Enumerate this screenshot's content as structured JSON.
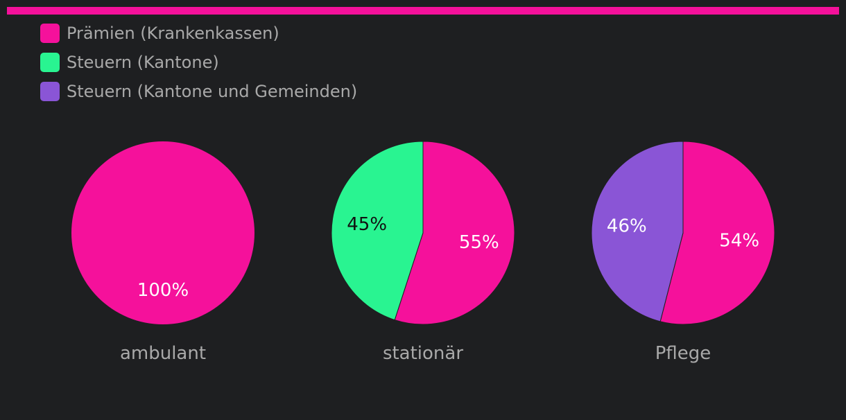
{
  "colors": {
    "bar": "#f5119b",
    "background": "#1e1f21",
    "text": "#a9a9a9"
  },
  "chart_data": {
    "type": "pie",
    "legend": [
      {
        "label": "Prämien (Krankenkassen)",
        "color": "#f5119b"
      },
      {
        "label": "Steuern (Kantone)",
        "color": "#29f491"
      },
      {
        "label": "Steuern (Kantone und Gemeinden)",
        "color": "#8a55d6"
      }
    ],
    "legend_placement": "top-left",
    "pies": [
      {
        "title": "ambulant",
        "slices": [
          {
            "series": "Prämien (Krankenkassen)",
            "value": 100,
            "label": "100%"
          }
        ]
      },
      {
        "title": "stationär",
        "slices": [
          {
            "series": "Prämien (Krankenkassen)",
            "value": 55,
            "label": "55%"
          },
          {
            "series": "Steuern (Kantone)",
            "value": 45,
            "label": "45%"
          }
        ]
      },
      {
        "title": "Pflege",
        "slices": [
          {
            "series": "Prämien (Krankenkassen)",
            "value": 54,
            "label": "54%"
          },
          {
            "series": "Steuern (Kantone und Gemeinden)",
            "value": 46,
            "label": "46%"
          }
        ]
      }
    ]
  }
}
